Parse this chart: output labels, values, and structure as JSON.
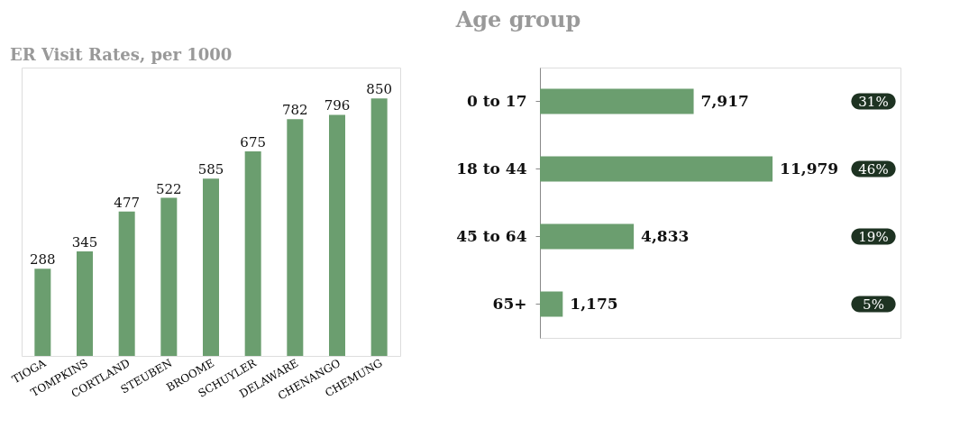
{
  "chart_data": [
    {
      "type": "bar",
      "title": "ER Visit Rates, per 1000",
      "categories": [
        "TIOGA",
        "TOMPKINS",
        "CORTLAND",
        "STEUBEN",
        "BROOME",
        "SCHUYLER",
        "DELAWARE",
        "CHENANGO",
        "CHEMUNG"
      ],
      "values": [
        288,
        345,
        477,
        522,
        585,
        675,
        782,
        796,
        850
      ],
      "color": "#6b9e6f",
      "data_labels": true
    },
    {
      "type": "bar",
      "orientation": "horizontal",
      "title": "Age group",
      "categories": [
        "0 to 17",
        "18 to 44",
        "45 to 64",
        "65+"
      ],
      "values": [
        7917,
        11979,
        4833,
        1175
      ],
      "color": "#6b9e6f",
      "value_labels": [
        "7,917",
        "11,979",
        "4,833",
        "1,175"
      ],
      "annotations": [
        "31%",
        "46%",
        "19%",
        "5%"
      ]
    }
  ]
}
